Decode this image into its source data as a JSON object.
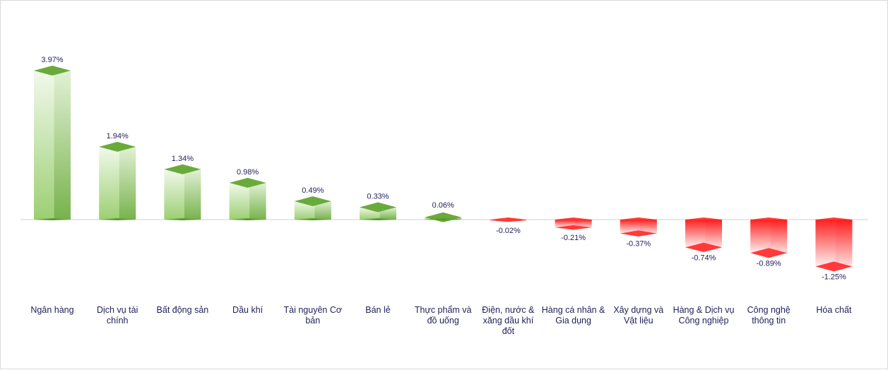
{
  "chart_data": {
    "type": "bar",
    "title": "",
    "xlabel": "",
    "ylabel": "",
    "categories": [
      "Ngân hàng",
      "Dịch vụ tài chính",
      "Bất động sản",
      "Dầu khí",
      "Tài nguyên Cơ bản",
      "Bán lẻ",
      "Thực phẩm và đồ uống",
      "Điện, nước & xăng dầu khí đốt",
      "Hàng cá nhân & Gia dụng",
      "Xây dựng và Vật liệu",
      "Hàng & Dịch vụ Công nghiệp",
      "Công nghệ thông tin",
      "Hóa chất"
    ],
    "values": [
      3.97,
      1.94,
      1.34,
      0.98,
      0.49,
      0.33,
      0.06,
      -0.02,
      -0.21,
      -0.37,
      -0.74,
      -0.89,
      -1.25
    ],
    "value_labels": [
      "3.97%",
      "1.94%",
      "1.34%",
      "0.98%",
      "0.49%",
      "0.33%",
      "0.06%",
      "-0.02%",
      "-0.21%",
      "-0.37%",
      "-0.74%",
      "-0.89%",
      "-1.25%"
    ],
    "ylim": [
      -1.25,
      3.97
    ],
    "grid": false,
    "legend": "none",
    "colors": {
      "positive_top": "#6aaa3a",
      "positive_side": "#5a9a2e",
      "positive_front_light": "#f2f9ec",
      "positive_front_dark": "#9ccf73",
      "negative_top": "#ff3a3a",
      "negative_front_light": "#fff0f0",
      "negative_front_dark": "#ff2020",
      "axis": "#d0d0d0",
      "text": "#1f1f5a"
    }
  }
}
